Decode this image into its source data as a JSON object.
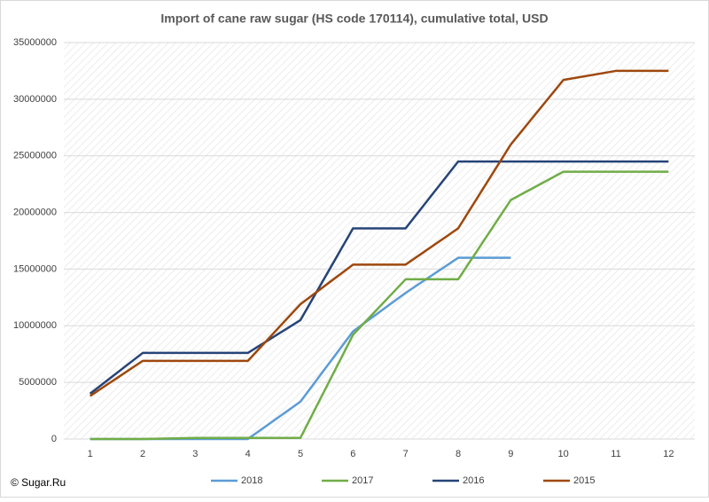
{
  "chart_data": {
    "type": "line",
    "title": "Import of cane raw sugar (HS code 170114), cumulative total, USD",
    "credit": "© Sugar.Ru",
    "categories": [
      "1",
      "2",
      "3",
      "4",
      "5",
      "6",
      "7",
      "8",
      "9",
      "10",
      "11",
      "12"
    ],
    "series": [
      {
        "name": "2018",
        "color": "#5b9bd5",
        "values": [
          0,
          0,
          0,
          0,
          3300000,
          9500000,
          12900000,
          16000000,
          16000000,
          null,
          null,
          null
        ]
      },
      {
        "name": "2017",
        "color": "#70ad47",
        "values": [
          0,
          0,
          100000,
          100000,
          100000,
          9200000,
          14100000,
          14100000,
          21100000,
          23600000,
          23600000,
          23600000
        ]
      },
      {
        "name": "2016",
        "color": "#264478",
        "values": [
          4000000,
          7600000,
          7600000,
          7600000,
          10500000,
          18600000,
          18600000,
          24500000,
          24500000,
          24500000,
          24500000,
          24500000
        ]
      },
      {
        "name": "2015",
        "color": "#9e480e",
        "values": [
          3800000,
          6900000,
          6900000,
          6900000,
          11900000,
          15400000,
          15400000,
          18600000,
          26000000,
          31700000,
          32500000,
          32500000
        ]
      }
    ],
    "ylim": [
      0,
      35000000
    ],
    "yticks": [
      0,
      5000000,
      10000000,
      15000000,
      20000000,
      25000000,
      30000000,
      35000000
    ],
    "grid": true
  }
}
